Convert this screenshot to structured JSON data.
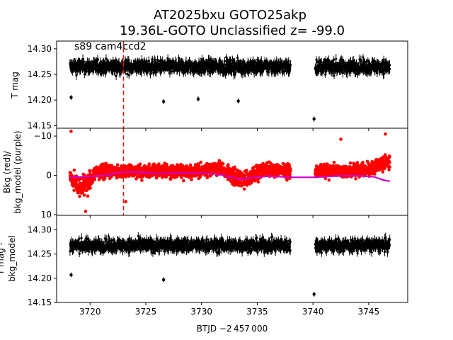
{
  "figure": {
    "title_line1": "AT2025bxu  GOTO25akp",
    "title_line2": "19.36L-GOTO Unclassified z= -99.0",
    "xlabel": "BTJD −2 457 000"
  },
  "chart_data": [
    {
      "type": "scatter",
      "panel": "top",
      "ylabel": "T mag",
      "annotation": "s89 cam4ccd2",
      "xlim": [
        3717,
        3748.5
      ],
      "ylim": [
        14.315,
        14.145
      ],
      "y_inverted": true,
      "xticks": [
        3720,
        3725,
        3730,
        3735,
        3740,
        3745
      ],
      "yticks": [
        14.15,
        14.2,
        14.25,
        14.3
      ],
      "ytick_labels": [
        "14.15",
        "14.20",
        "14.25",
        "14.30"
      ],
      "marker_line": {
        "x": 3723.0,
        "style": "dashed",
        "color": "#ff0000"
      },
      "segments": [
        {
          "x_start": 3718.2,
          "x_end": 3738.0,
          "y_center": 14.265,
          "y_spread": 0.025
        },
        {
          "x_start": 3740.2,
          "x_end": 3746.9,
          "y_center": 14.265,
          "y_spread": 0.025
        }
      ],
      "outliers": [
        {
          "x": 3718.3,
          "y": 14.205
        },
        {
          "x": 3726.6,
          "y": 14.197
        },
        {
          "x": 3729.7,
          "y": 14.202
        },
        {
          "x": 3733.3,
          "y": 14.198
        },
        {
          "x": 3740.1,
          "y": 14.163
        }
      ],
      "color": "#000000"
    },
    {
      "type": "scatter",
      "panel": "middle",
      "ylabel": "Bkg (red)/\nbkg_model (purple)",
      "xlim": [
        3717,
        3748.5
      ],
      "ylim": [
        -12,
        10.2
      ],
      "yticks": [
        10,
        0,
        -10
      ],
      "ytick_labels": [
        "10",
        "0",
        "−10"
      ],
      "marker_line": {
        "x": 3723.0,
        "style": "dashed",
        "color": "#ff0000"
      },
      "bkg_color": "#ff0000",
      "model_color": "#cc00cc",
      "model_points": [
        [
          3718.2,
          0.5
        ],
        [
          3720,
          0.3
        ],
        [
          3721.5,
          0.0
        ],
        [
          3722.5,
          -0.7
        ],
        [
          3724,
          -0.9
        ],
        [
          3726,
          -0.4
        ],
        [
          3728,
          -0.6
        ],
        [
          3730,
          -0.5
        ],
        [
          3731.5,
          -0.3
        ],
        [
          3732.5,
          0.4
        ],
        [
          3733.5,
          1.0
        ],
        [
          3734.5,
          0.6
        ],
        [
          3736,
          0.2
        ],
        [
          3738.0,
          0.5
        ],
        [
          3740.2,
          0.5
        ],
        [
          3742,
          0.2
        ],
        [
          3744,
          0.1
        ],
        [
          3745.5,
          0.4
        ],
        [
          3746.3,
          1.2
        ],
        [
          3746.9,
          1.5
        ]
      ],
      "bkg_envelope": [
        [
          3718.2,
          0.0,
          3.0
        ],
        [
          3719.0,
          3.0,
          4.5
        ],
        [
          3719.8,
          2.0,
          4.0
        ],
        [
          3720.6,
          -1.0,
          3.5
        ],
        [
          3722.0,
          -1.0,
          3.0
        ],
        [
          3724.0,
          -1.0,
          3.0
        ],
        [
          3727.0,
          -1.0,
          3.0
        ],
        [
          3730.0,
          -1.0,
          3.0
        ],
        [
          3731.5,
          -2.0,
          3.0
        ],
        [
          3733.0,
          0.5,
          3.5
        ],
        [
          3734.0,
          1.0,
          3.5
        ],
        [
          3735.5,
          -1.5,
          3.0
        ],
        [
          3738.0,
          -1.0,
          3.0
        ],
        [
          3740.2,
          -1.0,
          3.0
        ],
        [
          3743.0,
          -1.0,
          3.0
        ],
        [
          3745.0,
          -1.5,
          3.0
        ],
        [
          3746.9,
          -3.5,
          4.0
        ]
      ]
    },
    {
      "type": "scatter",
      "panel": "bottom",
      "ylabel": "T mag -\nbkg_model",
      "xlim": [
        3717,
        3748.5
      ],
      "ylim": [
        14.33,
        14.15
      ],
      "y_inverted": true,
      "xticks": [
        3720,
        3725,
        3730,
        3735,
        3740,
        3745
      ],
      "xtick_labels": [
        "3720",
        "3725",
        "3730",
        "3735",
        "3740",
        "3745"
      ],
      "yticks": [
        14.15,
        14.2,
        14.25,
        14.3
      ],
      "ytick_labels": [
        "14.15",
        "14.20",
        "14.25",
        "14.30"
      ],
      "segments": [
        {
          "x_start": 3718.2,
          "x_end": 3738.0,
          "y_center": 14.268,
          "y_spread": 0.025
        },
        {
          "x_start": 3740.2,
          "x_end": 3746.9,
          "y_center": 14.268,
          "y_spread": 0.025
        }
      ],
      "outliers": [
        {
          "x": 3718.3,
          "y": 14.207
        },
        {
          "x": 3726.6,
          "y": 14.197
        },
        {
          "x": 3740.1,
          "y": 14.167
        }
      ],
      "color": "#000000"
    }
  ]
}
